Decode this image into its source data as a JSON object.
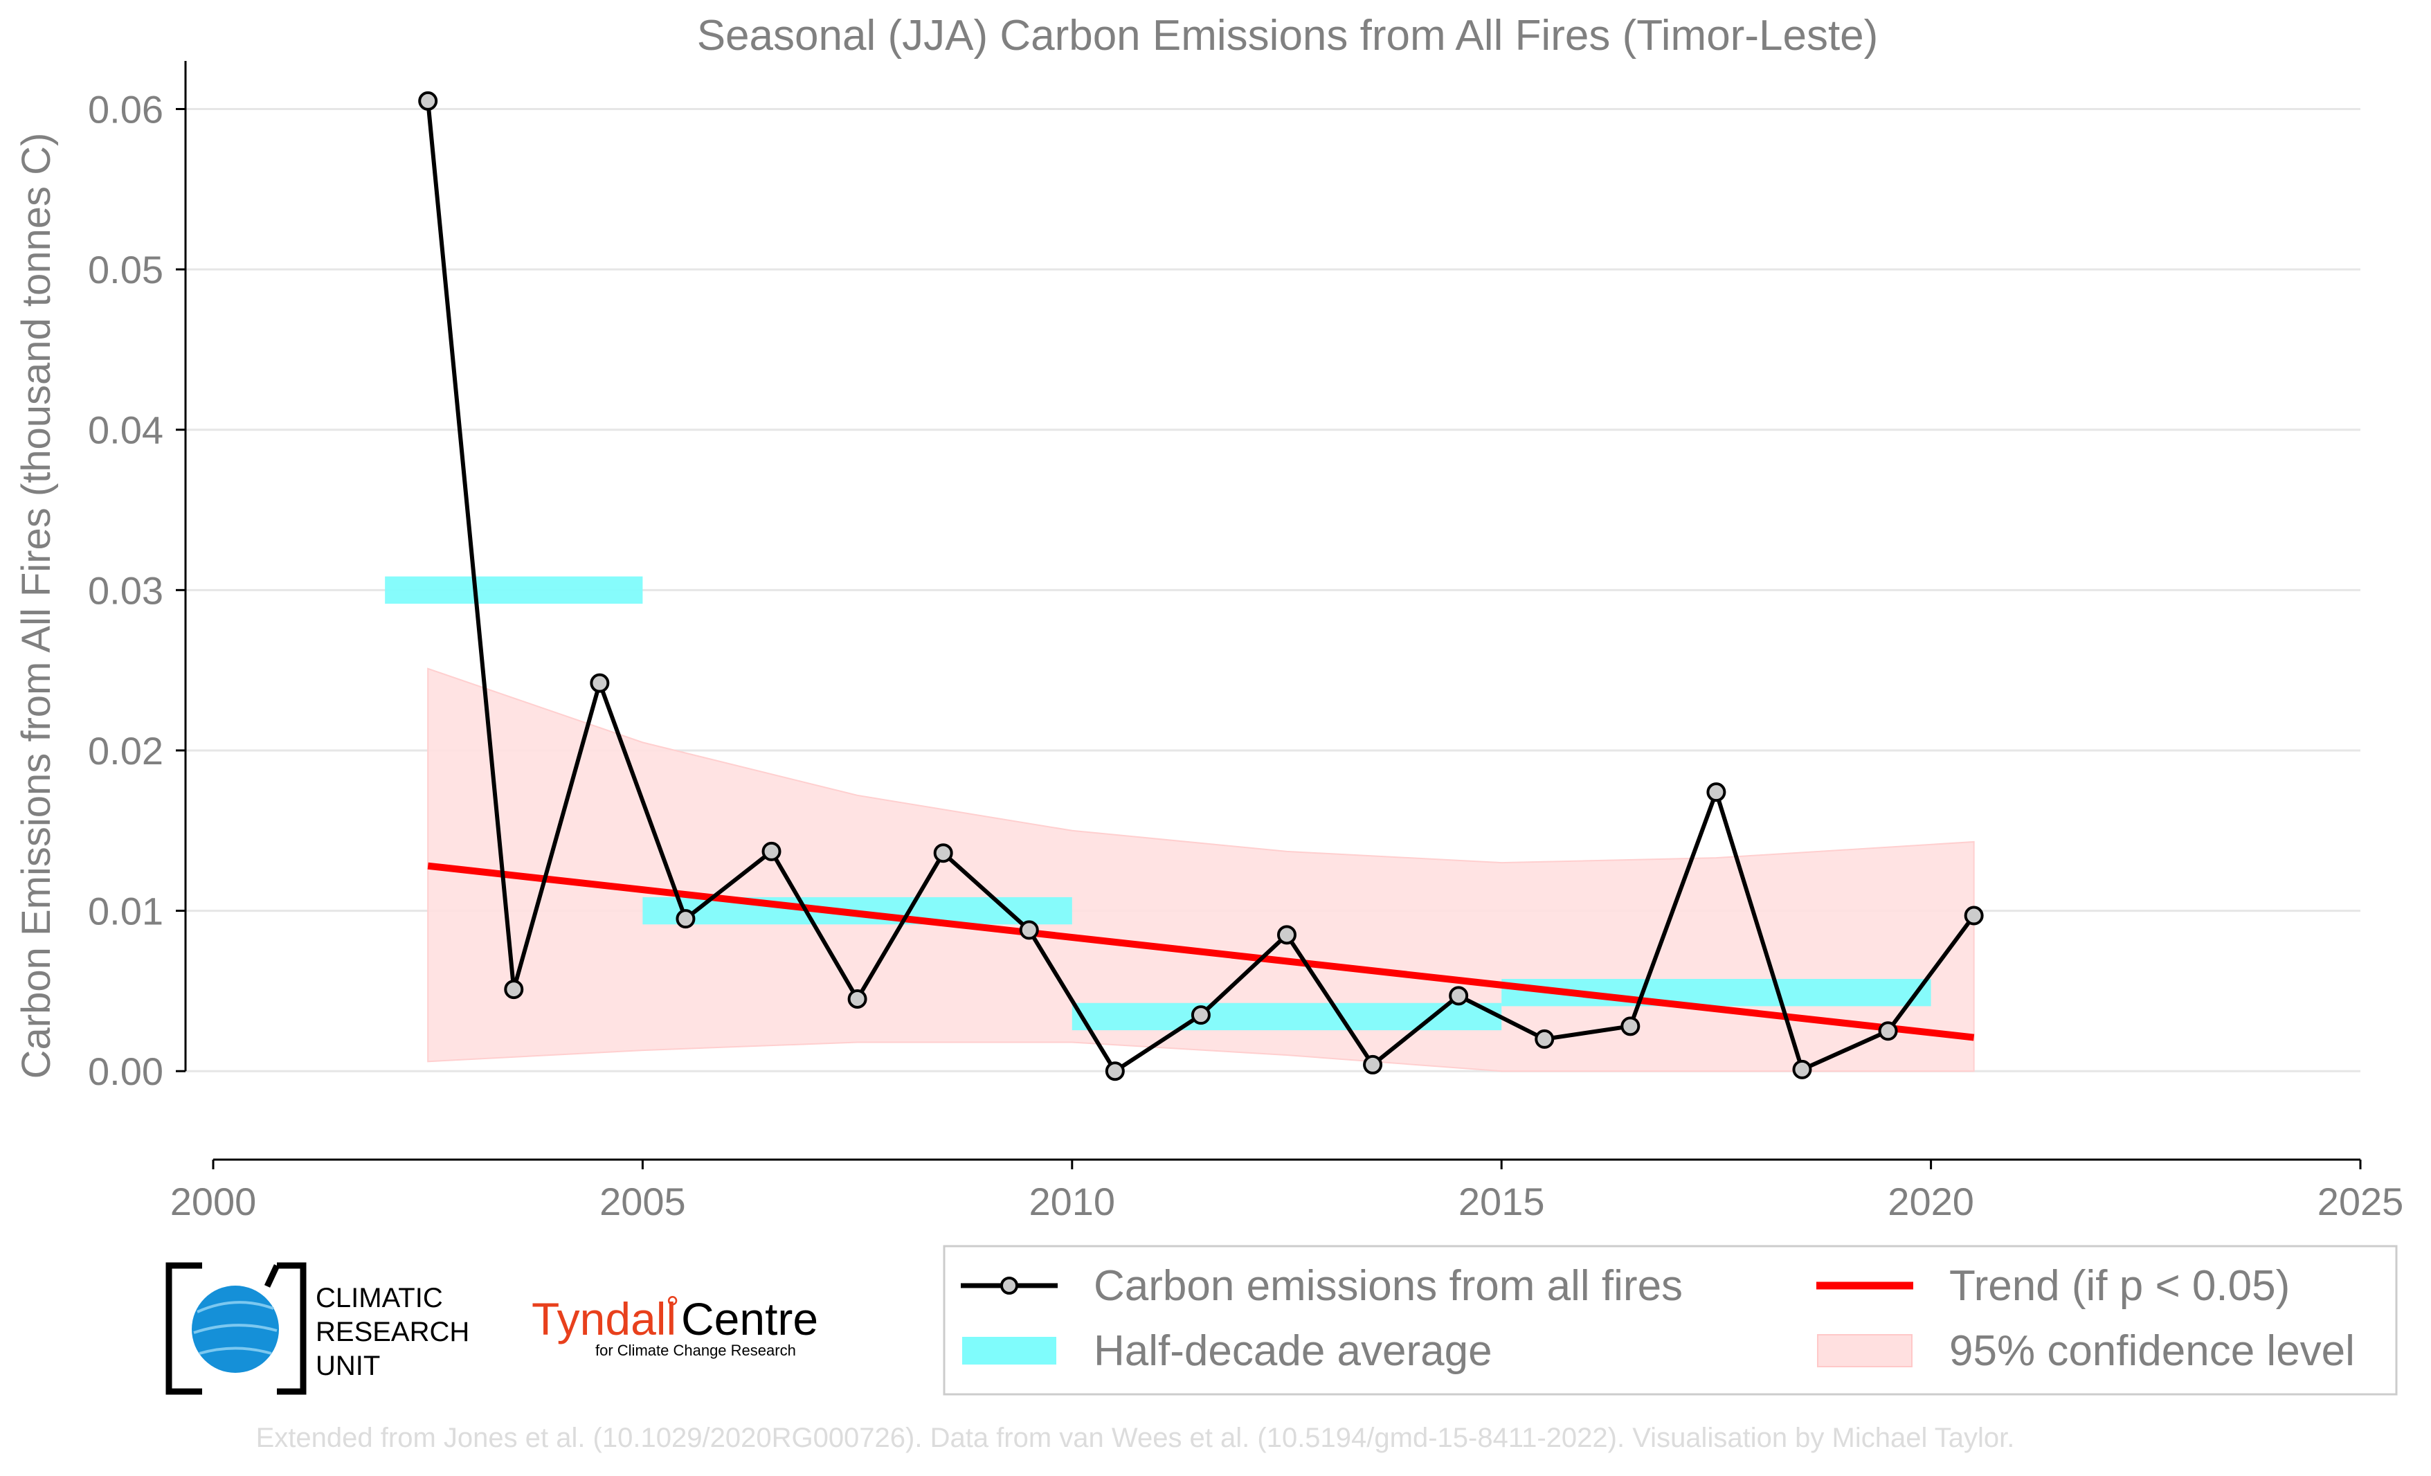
{
  "chart_data": {
    "type": "line",
    "title": "Seasonal (JJA) Carbon Emissions from All Fires (Timor-Leste)",
    "xlabel": "",
    "ylabel": "Carbon Emissions from All Fires (thousand tonnes C)",
    "xlim": [
      2000,
      2025
    ],
    "ylim": [
      -0.005,
      0.063
    ],
    "x_ticks": [
      "2000",
      "2005",
      "2010",
      "2015",
      "2020",
      "2025"
    ],
    "y_ticks": [
      "0.00",
      "0.01",
      "0.02",
      "0.03",
      "0.04",
      "0.05",
      "0.06"
    ],
    "grid": "horizontal",
    "series": [
      {
        "name": "Carbon emissions from all fires",
        "color": "#000000",
        "x": [
          2002.5,
          2003.5,
          2004.5,
          2005.5,
          2006.5,
          2007.5,
          2008.5,
          2009.5,
          2010.5,
          2011.5,
          2012.5,
          2013.5,
          2014.5,
          2015.5,
          2016.5,
          2017.5,
          2018.5,
          2019.5,
          2020.5
        ],
        "values": [
          0.0605,
          0.0051,
          0.0242,
          0.0095,
          0.0137,
          0.0045,
          0.0136,
          0.0088,
          0.0,
          0.0035,
          0.0085,
          0.0004,
          0.0047,
          0.002,
          0.0028,
          0.0174,
          0.0001,
          0.0025,
          0.0097
        ]
      },
      {
        "name": "Half-decade average",
        "color": "#7ffcfc",
        "segments": [
          {
            "x0": 2002,
            "x1": 2005,
            "value": 0.03
          },
          {
            "x0": 2005,
            "x1": 2010,
            "value": 0.01
          },
          {
            "x0": 2010,
            "x1": 2015,
            "value": 0.0034
          },
          {
            "x0": 2015,
            "x1": 2020,
            "value": 0.0049
          }
        ]
      },
      {
        "name": "Trend (if p < 0.05)",
        "color": "#ff0000",
        "x": [
          2002.5,
          2020.5
        ],
        "values": [
          0.0128,
          0.0021
        ]
      },
      {
        "name": "95% confidence level",
        "color": "#ffe0e0",
        "x": [
          2002.5,
          2005,
          2007.5,
          2010,
          2012.5,
          2015,
          2017.5,
          2020.5
        ],
        "upper": [
          0.0251,
          0.0205,
          0.0172,
          0.015,
          0.0137,
          0.013,
          0.0133,
          0.0143
        ],
        "lower": [
          0.0006,
          0.0013,
          0.0018,
          0.0018,
          0.001,
          0.0,
          0.0,
          0.0
        ]
      }
    ],
    "legend_position": "bottom-right"
  },
  "logos": {
    "cru_lines": [
      "CLIMATIC",
      "RESEARCH",
      "UNIT"
    ],
    "tyndall_name": "Tyndall",
    "tyndall_degree": "°",
    "tyndall_centre": "Centre",
    "tyndall_sub": "for Climate Change Research"
  },
  "credit": "Extended from Jones et al. (10.1029/2020RG000726). Data from van Wees et al. (10.5194/gmd-15-8411-2022). Visualisation by Michael Taylor."
}
